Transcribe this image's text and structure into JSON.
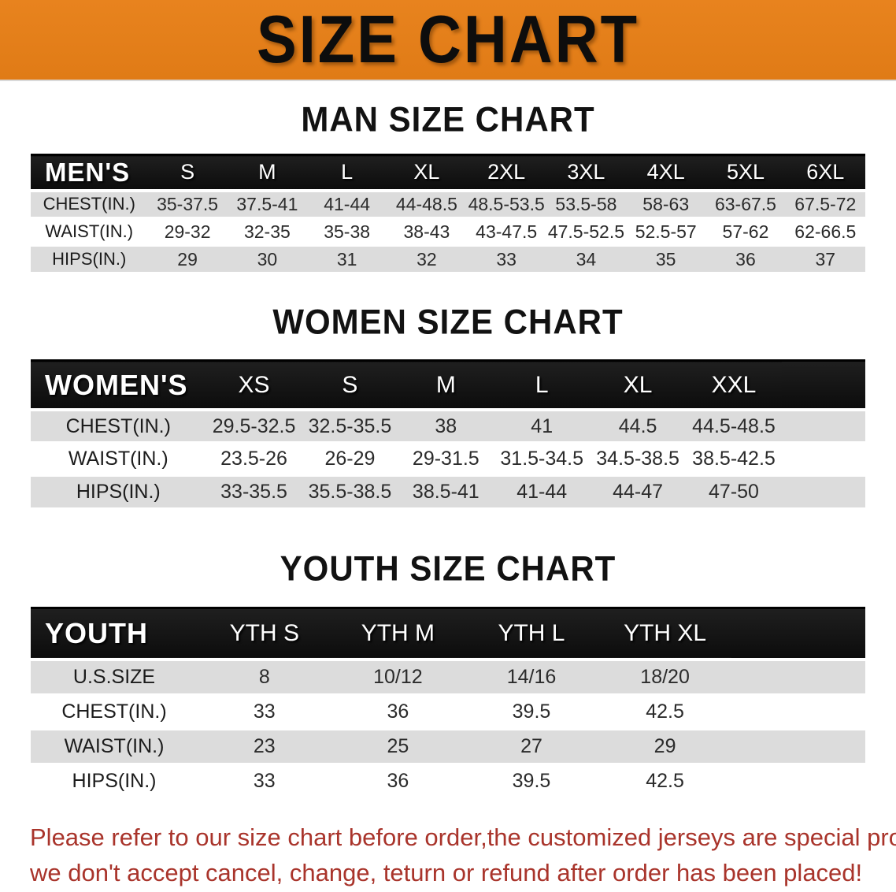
{
  "banner": {
    "title": "SIZE CHART",
    "bg_color": "#E8831E",
    "text_color": "#0D0D0D"
  },
  "sections": [
    {
      "id": "man",
      "heading": "MAN SIZE CHART",
      "table": {
        "header_label": "MEN'S",
        "columns": [
          "S",
          "M",
          "L",
          "XL",
          "2XL",
          "3XL",
          "4XL",
          "5XL",
          "6XL"
        ],
        "rows": [
          {
            "label": "CHEST(IN.)",
            "values": [
              "35-37.5",
              "37.5-41",
              "41-44",
              "44-48.5",
              "48.5-53.5",
              "53.5-58",
              "58-63",
              "63-67.5",
              "67.5-72"
            ]
          },
          {
            "label": "WAIST(IN.)",
            "values": [
              "29-32",
              "32-35",
              "35-38",
              "38-43",
              "43-47.5",
              "47.5-52.5",
              "52.5-57",
              "57-62",
              "62-66.5"
            ]
          },
          {
            "label": "HIPS(IN.)",
            "values": [
              "29",
              "30",
              "31",
              "32",
              "33",
              "34",
              "35",
              "36",
              "37"
            ]
          }
        ]
      }
    },
    {
      "id": "women",
      "heading": "WOMEN SIZE CHART",
      "table": {
        "header_label": "WOMEN'S",
        "columns": [
          "XS",
          "S",
          "M",
          "L",
          "XL",
          "XXL"
        ],
        "rows": [
          {
            "label": "CHEST(IN.)",
            "values": [
              "29.5-32.5",
              "32.5-35.5",
              "38",
              "41",
              "44.5",
              "44.5-48.5"
            ]
          },
          {
            "label": "WAIST(IN.)",
            "values": [
              "23.5-26",
              "26-29",
              "29-31.5",
              "31.5-34.5",
              "34.5-38.5",
              "38.5-42.5"
            ]
          },
          {
            "label": "HIPS(IN.)",
            "values": [
              "33-35.5",
              "35.5-38.5",
              "38.5-41",
              "41-44",
              "44-47",
              "47-50"
            ]
          }
        ]
      }
    },
    {
      "id": "youth",
      "heading": "YOUTH SIZE CHART",
      "table": {
        "header_label": "YOUTH",
        "columns": [
          "YTH S",
          "YTH M",
          "YTH L",
          "YTH XL"
        ],
        "rows": [
          {
            "label": "U.S.SIZE",
            "values": [
              "8",
              "10/12",
              "14/16",
              "18/20"
            ]
          },
          {
            "label": "CHEST(IN.)",
            "values": [
              "33",
              "36",
              "39.5",
              "42.5"
            ]
          },
          {
            "label": "WAIST(IN.)",
            "values": [
              "23",
              "25",
              "27",
              "29"
            ]
          },
          {
            "label": "HIPS(IN.)",
            "values": [
              "33",
              "36",
              "39.5",
              "42.5"
            ]
          }
        ]
      }
    }
  ],
  "disclaimer": {
    "line1": "Please refer to our size chart before order,the customized jerseys are special products,",
    "line2": "we don't accept cancel, change, teturn or refund after order has been placed!",
    "color": "#A9342B"
  },
  "colors": {
    "banner_orange": "#E8831E",
    "table_header_black": "#141414",
    "row_gray": "#DCDCDC",
    "row_white": "#FFFFFF"
  }
}
